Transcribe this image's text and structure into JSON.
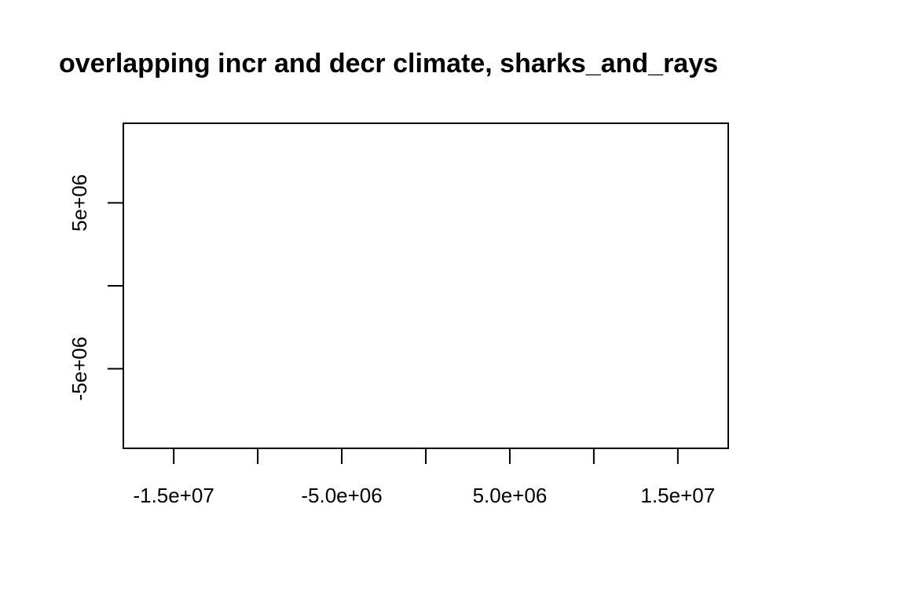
{
  "chart_data": {
    "type": "scatter",
    "title": "overlapping incr and decr climate, sharks_and_rays",
    "xlabel": "",
    "ylabel": "",
    "xlim": [
      -18000000,
      18000000
    ],
    "ylim": [
      -9800000,
      9800000
    ],
    "x_ticks": [
      {
        "value": -15000000,
        "label": "-1.5e+07"
      },
      {
        "value": -10000000,
        "label": ""
      },
      {
        "value": -5000000,
        "label": "-5.0e+06"
      },
      {
        "value": 0,
        "label": ""
      },
      {
        "value": 5000000,
        "label": "5.0e+06"
      },
      {
        "value": 10000000,
        "label": ""
      },
      {
        "value": 15000000,
        "label": "1.5e+07"
      }
    ],
    "y_ticks": [
      {
        "value": -5000000,
        "label": "-5e+06"
      },
      {
        "value": 0,
        "label": ""
      },
      {
        "value": 5000000,
        "label": "5e+06"
      }
    ],
    "series": [],
    "grid": false
  }
}
